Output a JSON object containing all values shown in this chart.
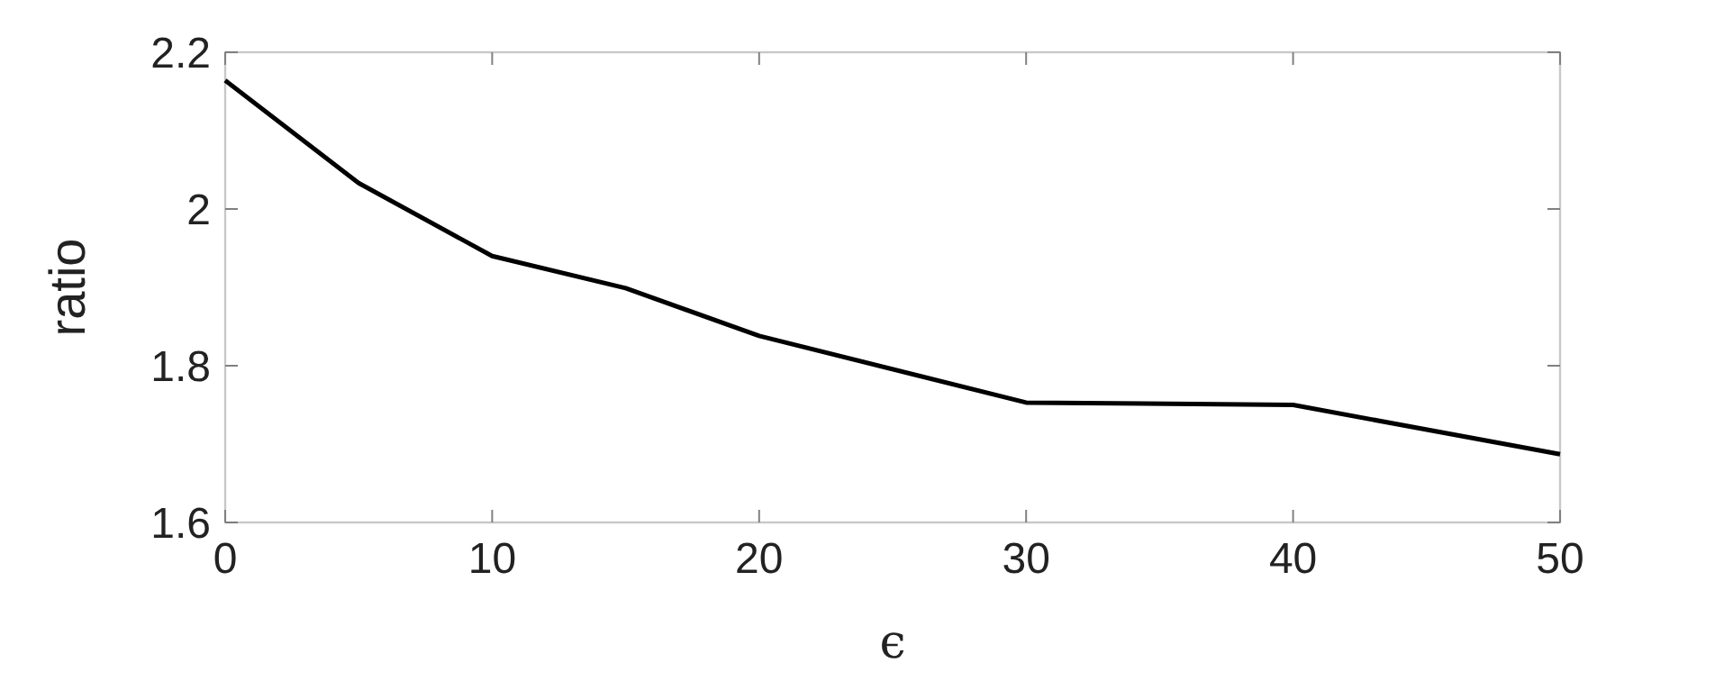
{
  "chart_data": {
    "type": "line",
    "xlabel": "ϵ",
    "ylabel": "ratio",
    "x": [
      0,
      5,
      10,
      15,
      20,
      30,
      40,
      50
    ],
    "series": [
      {
        "color": "#000000",
        "values": [
          2.164,
          2.033,
          1.94,
          1.899,
          1.838,
          1.753,
          1.75,
          1.687
        ]
      }
    ],
    "xlim": [
      0,
      50
    ],
    "xticks": [
      0,
      10,
      20,
      30,
      40,
      50
    ],
    "ylim": [
      1.6,
      2.2
    ],
    "yticks": [
      1.6,
      1.8,
      2,
      2.2
    ],
    "grid": false,
    "marker": "none",
    "line_style": "solid"
  }
}
